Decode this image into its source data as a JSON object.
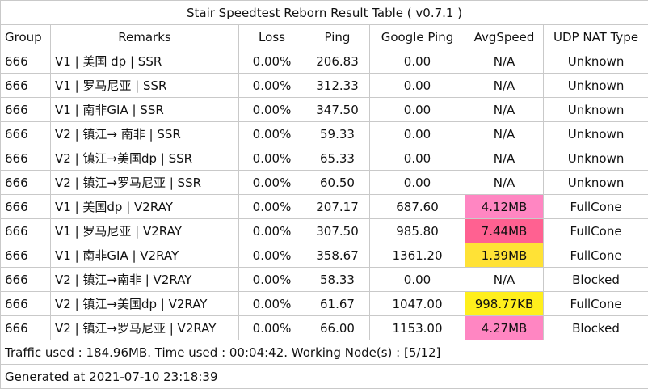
{
  "title": "Stair Speedtest Reborn Result Table ( v0.7.1 )",
  "headers": [
    "Group",
    "Remarks",
    "Loss",
    "Ping",
    "Google Ping",
    "AvgSpeed",
    "UDP NAT Type"
  ],
  "rows": [
    {
      "group": "666",
      "remarks": "V1 | 美国 dp | SSR",
      "loss": "0.00%",
      "ping": "206.83",
      "gping": "0.00",
      "speed": "N/A",
      "nat": "Unknown",
      "speed_color": "#ffffff"
    },
    {
      "group": "666",
      "remarks": "V1 | 罗马尼亚 | SSR",
      "loss": "0.00%",
      "ping": "312.33",
      "gping": "0.00",
      "speed": "N/A",
      "nat": "Unknown",
      "speed_color": "#ffffff"
    },
    {
      "group": "666",
      "remarks": "V1 | 南非GIA | SSR",
      "loss": "0.00%",
      "ping": "347.50",
      "gping": "0.00",
      "speed": "N/A",
      "nat": "Unknown",
      "speed_color": "#ffffff"
    },
    {
      "group": "666",
      "remarks": "V2 | 镇江→ 南非 | SSR",
      "loss": "0.00%",
      "ping": "59.33",
      "gping": "0.00",
      "speed": "N/A",
      "nat": "Unknown",
      "speed_color": "#ffffff"
    },
    {
      "group": "666",
      "remarks": "V2 | 镇江→美国dp | SSR",
      "loss": "0.00%",
      "ping": "65.33",
      "gping": "0.00",
      "speed": "N/A",
      "nat": "Unknown",
      "speed_color": "#ffffff"
    },
    {
      "group": "666",
      "remarks": "V2 | 镇江→罗马尼亚 | SSR",
      "loss": "0.00%",
      "ping": "60.50",
      "gping": "0.00",
      "speed": "N/A",
      "nat": "Unknown",
      "speed_color": "#ffffff"
    },
    {
      "group": "666",
      "remarks": "V1 | 美国dp | V2RAY",
      "loss": "0.00%",
      "ping": "207.17",
      "gping": "687.60",
      "speed": "4.12MB",
      "nat": "FullCone",
      "speed_color": "#ff86c2"
    },
    {
      "group": "666",
      "remarks": "V1 | 罗马尼亚 | V2RAY",
      "loss": "0.00%",
      "ping": "307.50",
      "gping": "985.80",
      "speed": "7.44MB",
      "nat": "FullCone",
      "speed_color": "#ff6191"
    },
    {
      "group": "666",
      "remarks": "V1 | 南非GIA | V2RAY",
      "loss": "0.00%",
      "ping": "358.67",
      "gping": "1361.20",
      "speed": "1.39MB",
      "nat": "FullCone",
      "speed_color": "#ffe236"
    },
    {
      "group": "666",
      "remarks": "V2 | 镇江→南非 | V2RAY",
      "loss": "0.00%",
      "ping": "58.33",
      "gping": "0.00",
      "speed": "N/A",
      "nat": "Blocked",
      "speed_color": "#ffffff"
    },
    {
      "group": "666",
      "remarks": "V2 | 镇江→美国dp | V2RAY",
      "loss": "0.00%",
      "ping": "61.67",
      "gping": "1047.00",
      "speed": "998.77KB",
      "nat": "FullCone",
      "speed_color": "#ffef1c"
    },
    {
      "group": "666",
      "remarks": "V2 | 镇江→罗马尼亚 | V2RAY",
      "loss": "0.00%",
      "ping": "66.00",
      "gping": "1153.00",
      "speed": "4.27MB",
      "nat": "Blocked",
      "speed_color": "#ff86c2"
    }
  ],
  "traffic": "Traffic used : 184.96MB. Time used : 00:04:42. Working Node(s) : [5/12]",
  "generated": "Generated at 2021-07-10 23:18:39"
}
